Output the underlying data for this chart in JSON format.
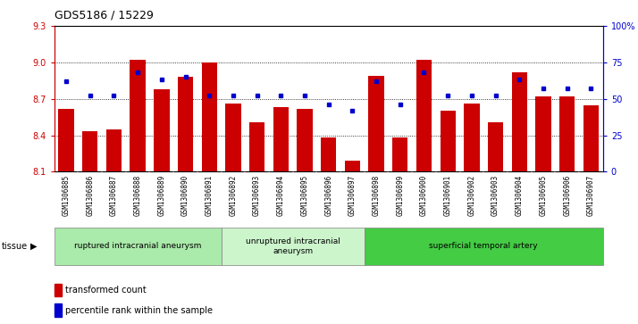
{
  "title": "GDS5186 / 15229",
  "samples": [
    "GSM1306885",
    "GSM1306886",
    "GSM1306887",
    "GSM1306888",
    "GSM1306889",
    "GSM1306890",
    "GSM1306891",
    "GSM1306892",
    "GSM1306893",
    "GSM1306894",
    "GSM1306895",
    "GSM1306896",
    "GSM1306897",
    "GSM1306898",
    "GSM1306899",
    "GSM1306900",
    "GSM1306901",
    "GSM1306902",
    "GSM1306903",
    "GSM1306904",
    "GSM1306905",
    "GSM1306906",
    "GSM1306907"
  ],
  "bar_values": [
    8.62,
    8.43,
    8.45,
    9.02,
    8.78,
    8.88,
    9.0,
    8.66,
    8.51,
    8.63,
    8.62,
    8.38,
    8.19,
    8.89,
    8.38,
    9.02,
    8.6,
    8.66,
    8.51,
    8.92,
    8.72,
    8.72,
    8.65
  ],
  "dot_values": [
    62,
    52,
    52,
    68,
    63,
    65,
    52,
    52,
    52,
    52,
    52,
    46,
    42,
    62,
    46,
    68,
    52,
    52,
    52,
    63,
    57,
    57,
    57
  ],
  "bar_color": "#cc0000",
  "dot_color": "#0000cc",
  "ymin": 8.1,
  "ymax": 9.3,
  "yticks": [
    8.1,
    8.4,
    8.7,
    9.0,
    9.3
  ],
  "ytick_labels": [
    "8.1",
    "8.4",
    "8.7",
    "9.0",
    "9.3"
  ],
  "y2min": 0,
  "y2max": 100,
  "y2ticks": [
    0,
    25,
    50,
    75,
    100
  ],
  "y2tick_labels": [
    "0",
    "25",
    "50",
    "75",
    "100%"
  ],
  "groups": [
    {
      "label": "ruptured intracranial aneurysm",
      "start": 0,
      "end": 7,
      "color": "#aaeaaa"
    },
    {
      "label": "unruptured intracranial\naneurysm",
      "start": 7,
      "end": 13,
      "color": "#ccf5cc"
    },
    {
      "label": "superficial temporal artery",
      "start": 13,
      "end": 23,
      "color": "#44cc44"
    }
  ],
  "tissue_label": "tissue",
  "legend_bar_label": "transformed count",
  "legend_dot_label": "percentile rank within the sample",
  "background_color": "#ffffff",
  "plot_bg_color": "#ffffff",
  "tick_bg_color": "#d8d8d8",
  "grid_lines": [
    8.4,
    8.7,
    9.0
  ]
}
